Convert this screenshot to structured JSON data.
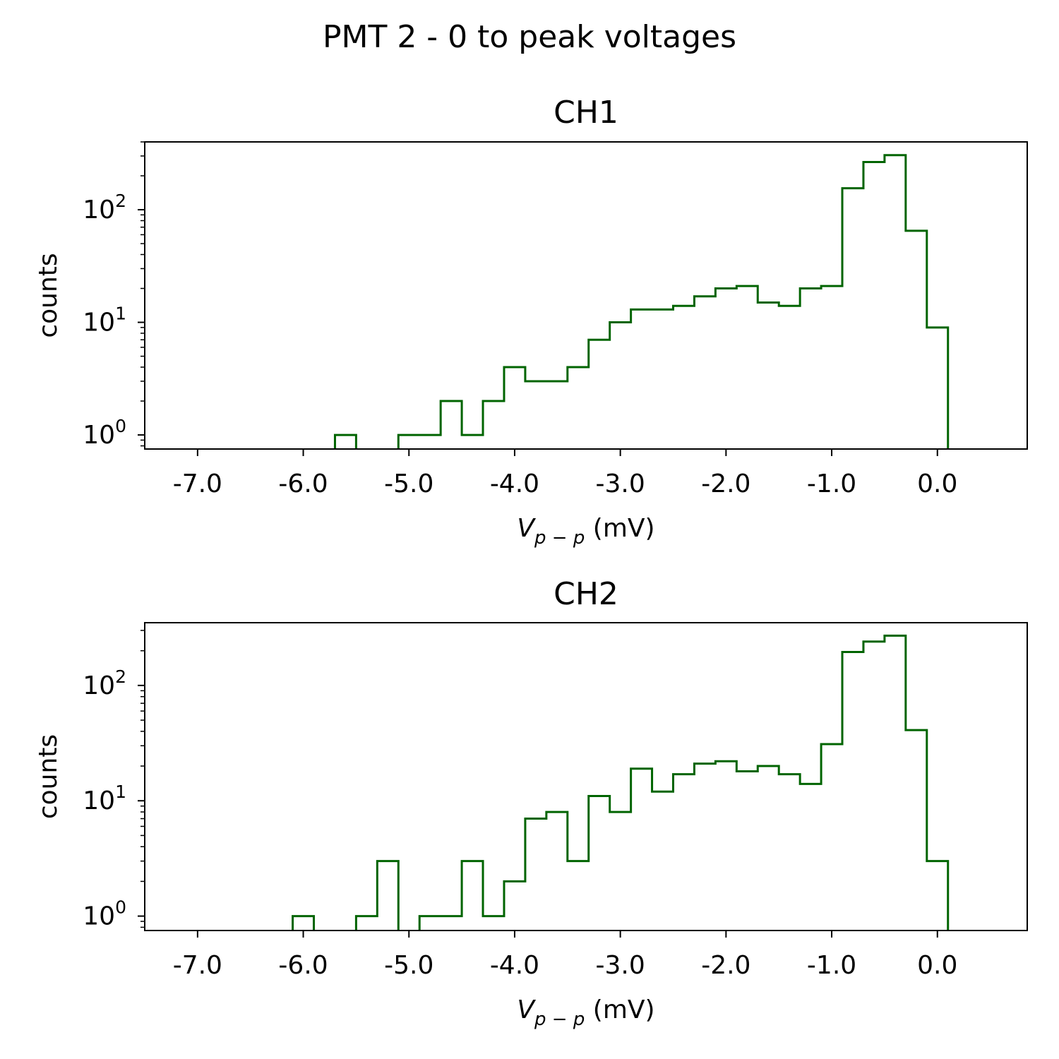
{
  "figure": {
    "suptitle": "PMT 2 - 0 to peak voltages",
    "hist_color": "#006400"
  },
  "chart_data": [
    {
      "type": "histogram",
      "title": "CH1",
      "xlabel_main": "V",
      "xlabel_sub": "p − p",
      "xlabel_unit": "(mV)",
      "ylabel": "counts",
      "yscale": "log",
      "xlim": [
        -7.5,
        0.85
      ],
      "ylim": [
        0.75,
        400
      ],
      "x_ticks": [
        -7,
        -6,
        -5,
        -4,
        -3,
        -2,
        -1,
        0
      ],
      "x_tick_labels": [
        "-7.0",
        "-6.0",
        "-5.0",
        "-4.0",
        "-3.0",
        "-2.0",
        "-1.0",
        "0.0"
      ],
      "y_ticks": [
        1,
        10,
        100
      ],
      "y_tick_labels": [
        {
          "base": "10",
          "exp": "0"
        },
        {
          "base": "10",
          "exp": "1"
        },
        {
          "base": "10",
          "exp": "2"
        }
      ],
      "bin_edges": [
        -7.3,
        -7.1,
        -6.9,
        -6.7,
        -6.5,
        -6.3,
        -6.1,
        -5.9,
        -5.7,
        -5.5,
        -5.3,
        -5.1,
        -4.9,
        -4.7,
        -4.5,
        -4.3,
        -4.1,
        -3.9,
        -3.7,
        -3.5,
        -3.3,
        -3.1,
        -2.9,
        -2.7,
        -2.5,
        -2.3,
        -2.1,
        -1.9,
        -1.7,
        -1.5,
        -1.3,
        -1.1,
        -0.9,
        -0.7,
        -0.5,
        -0.3,
        -0.1,
        0.1
      ],
      "counts": [
        0,
        0,
        0,
        0,
        0,
        0,
        0,
        0,
        1,
        0,
        0,
        1,
        1,
        2,
        1,
        2,
        4,
        3,
        3,
        4,
        7,
        10,
        13,
        13,
        14,
        17,
        20,
        21,
        15,
        14,
        20,
        21,
        155,
        265,
        305,
        65,
        9
      ]
    },
    {
      "type": "histogram",
      "title": "CH2",
      "xlabel_main": "V",
      "xlabel_sub": "p − p",
      "xlabel_unit": "(mV)",
      "ylabel": "counts",
      "yscale": "log",
      "xlim": [
        -7.5,
        0.85
      ],
      "ylim": [
        0.75,
        350
      ],
      "x_ticks": [
        -7,
        -6,
        -5,
        -4,
        -3,
        -2,
        -1,
        0
      ],
      "x_tick_labels": [
        "-7.0",
        "-6.0",
        "-5.0",
        "-4.0",
        "-3.0",
        "-2.0",
        "-1.0",
        "0.0"
      ],
      "y_ticks": [
        1,
        10,
        100
      ],
      "y_tick_labels": [
        {
          "base": "10",
          "exp": "0"
        },
        {
          "base": "10",
          "exp": "1"
        },
        {
          "base": "10",
          "exp": "2"
        }
      ],
      "bin_edges": [
        -7.3,
        -7.1,
        -6.9,
        -6.7,
        -6.5,
        -6.3,
        -6.1,
        -5.9,
        -5.7,
        -5.5,
        -5.3,
        -5.1,
        -4.9,
        -4.7,
        -4.5,
        -4.3,
        -4.1,
        -3.9,
        -3.7,
        -3.5,
        -3.3,
        -3.1,
        -2.9,
        -2.7,
        -2.5,
        -2.3,
        -2.1,
        -1.9,
        -1.7,
        -1.5,
        -1.3,
        -1.1,
        -0.9,
        -0.7,
        -0.5,
        -0.3,
        -0.1,
        0.1
      ],
      "counts": [
        0,
        0,
        0,
        0,
        0,
        0,
        1,
        0,
        0,
        1,
        3,
        0,
        1,
        1,
        3,
        1,
        2,
        7,
        8,
        3,
        11,
        8,
        19,
        12,
        17,
        21,
        22,
        18,
        20,
        17,
        14,
        31,
        195,
        240,
        270,
        41,
        3
      ]
    }
  ]
}
